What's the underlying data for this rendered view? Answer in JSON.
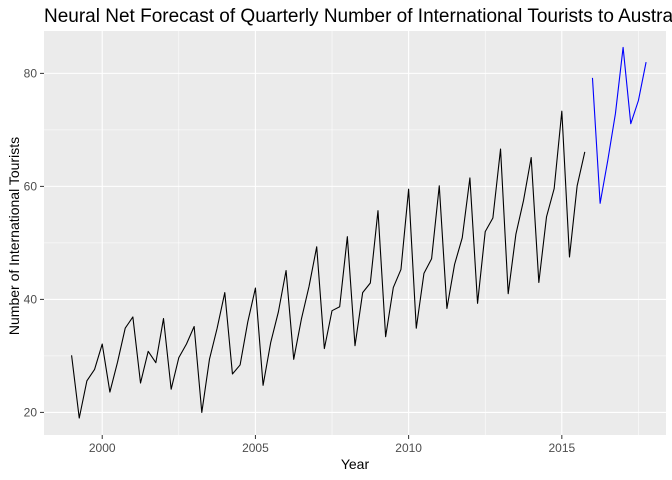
{
  "chart_data": {
    "type": "line",
    "title": "Neural Net Forecast of Quarterly Number of International Tourists to Australia F",
    "xlabel": "Year",
    "ylabel": "Number of International Tourists",
    "xlim": [
      1998.1,
      2018.4
    ],
    "ylim": [
      16.0,
      87.5
    ],
    "x_ticks": [
      2000,
      2005,
      2010,
      2015
    ],
    "y_ticks": [
      20,
      40,
      60,
      80
    ],
    "grid": true,
    "legend": "none",
    "series": [
      {
        "color": "#000000",
        "x_start": 1999.0,
        "step": 0.25,
        "values": [
          30.1,
          19.0,
          25.6,
          27.6,
          32.1,
          23.6,
          28.9,
          34.9,
          36.9,
          25.2,
          30.8,
          28.8,
          36.6,
          24.1,
          29.7,
          32.1,
          35.2,
          20.0,
          29.4,
          34.9,
          41.2,
          26.8,
          28.4,
          36.0,
          42.0,
          24.8,
          32.4,
          37.8,
          45.1,
          29.4,
          36.5,
          42.3,
          49.3,
          31.3,
          38.0,
          38.7,
          51.1,
          31.8,
          41.2,
          42.9,
          55.7,
          33.4,
          42.1,
          45.3,
          59.5,
          34.9,
          44.6,
          47.2,
          60.1,
          38.4,
          46.2,
          50.9,
          61.5,
          39.3,
          52.0,
          54.4,
          66.6,
          41.0,
          51.5,
          57.5,
          65.1,
          43.0,
          54.6,
          59.6,
          73.3,
          47.5,
          60.1,
          66.1
        ]
      },
      {
        "color": "#0000ff",
        "x_start": 2016.0,
        "step": 0.25,
        "values": [
          79.2,
          57.0,
          64.6,
          72.9,
          84.6,
          71.1,
          75.2,
          82.0
        ]
      }
    ]
  }
}
